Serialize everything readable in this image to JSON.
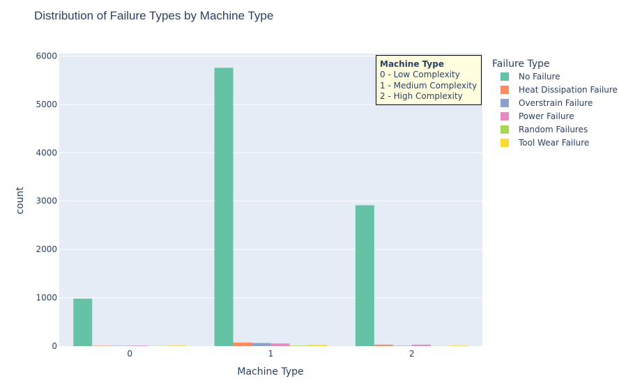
{
  "chart_data": {
    "type": "bar",
    "title": "Distribution of Failure Types by Machine Type",
    "xlabel": "Machine Type",
    "ylabel": "count",
    "categories": [
      "0",
      "1",
      "2"
    ],
    "ylim": [
      0,
      6050
    ],
    "yticks": [
      0,
      1000,
      2000,
      3000,
      4000,
      5000,
      6000
    ],
    "grid": true,
    "legend_position": "right",
    "legend_title": "Failure Type",
    "series": [
      {
        "name": "No Failure",
        "color": "#66c2a5",
        "values": [
          982,
          5757,
          2914
        ]
      },
      {
        "name": "Heat Dissipation Failure",
        "color": "#fc8d62",
        "values": [
          8,
          74,
          30
        ]
      },
      {
        "name": "Overstrain Failure",
        "color": "#8da0cb",
        "values": [
          7,
          64,
          8
        ]
      },
      {
        "name": "Power Failure",
        "color": "#e78ac3",
        "values": [
          10,
          55,
          30
        ]
      },
      {
        "name": "Random Failures",
        "color": "#a6d854",
        "values": [
          4,
          11,
          3
        ]
      },
      {
        "name": "Tool Wear Failure",
        "color": "#ffd92f",
        "values": [
          9,
          27,
          9
        ]
      }
    ],
    "annotation": {
      "heading": "Machine Type",
      "lines": [
        "0 - Low Complexity",
        "1 - Medium Complexity",
        "2 - High Complexity"
      ]
    }
  }
}
